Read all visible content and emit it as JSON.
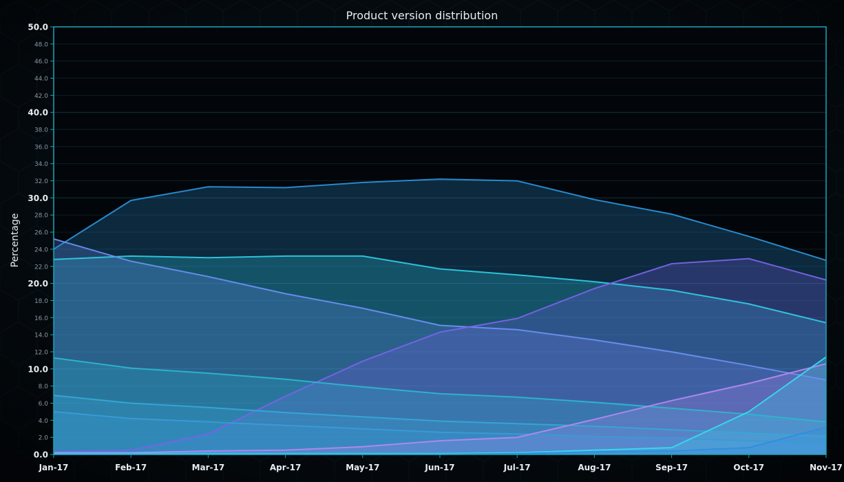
{
  "chart_data": {
    "type": "area",
    "title": "Product version distribution",
    "ylabel": "Percentage",
    "xlabel": "",
    "ylim": [
      0,
      50
    ],
    "grid": true,
    "x": [
      "Jan-17",
      "Feb-17",
      "Mar-17",
      "Apr-17",
      "May-17",
      "Jun-17",
      "Jul-17",
      "Aug-17",
      "Sep-17",
      "Oct-17",
      "Nov-17"
    ],
    "y_ticks": [
      "0.0",
      "2.0",
      "4.0",
      "6.0",
      "8.0",
      "10.0",
      "12.0",
      "14.0",
      "16.0",
      "18.0",
      "20.0",
      "22.0",
      "24.0",
      "26.0",
      "28.0",
      "30.0",
      "32.0",
      "34.0",
      "36.0",
      "38.0",
      "40.0",
      "42.0",
      "44.0",
      "46.0",
      "48.0",
      "50.0"
    ],
    "series": [
      {
        "values": [
          24.0,
          29.7,
          31.3,
          31.2,
          31.8,
          32.2,
          32.0,
          29.8,
          28.1,
          25.5,
          22.7
        ],
        "color": "#2a8fd6"
      },
      {
        "values": [
          22.8,
          23.2,
          23.0,
          23.2,
          23.2,
          21.7,
          21.0,
          20.2,
          19.2,
          17.6,
          15.4
        ],
        "color": "#2fc9e0"
      },
      {
        "values": [
          25.2,
          22.6,
          20.8,
          18.8,
          17.1,
          15.1,
          14.6,
          13.4,
          12.0,
          10.4,
          8.7
        ],
        "color": "#6a8ff0"
      },
      {
        "values": [
          0.3,
          0.5,
          2.4,
          6.8,
          10.9,
          14.3,
          15.9,
          19.4,
          22.3,
          22.9,
          20.4
        ],
        "color": "#7a62e8"
      },
      {
        "values": [
          11.3,
          10.1,
          9.5,
          8.8,
          7.9,
          7.1,
          6.7,
          6.1,
          5.4,
          4.7,
          3.8
        ],
        "color": "#2bb6cf"
      },
      {
        "values": [
          6.9,
          6.0,
          5.5,
          4.9,
          4.4,
          3.9,
          3.6,
          3.3,
          2.9,
          2.5,
          2.1
        ],
        "color": "#36a7d6"
      },
      {
        "values": [
          5.0,
          4.2,
          3.8,
          3.4,
          3.0,
          2.6,
          2.4,
          2.1,
          1.9,
          1.6,
          1.3
        ],
        "color": "#3a9ad8"
      },
      {
        "values": [
          0.2,
          0.2,
          0.4,
          0.5,
          0.9,
          1.6,
          2.0,
          4.1,
          6.3,
          8.3,
          10.6
        ],
        "color": "#b388f0"
      },
      {
        "values": [
          0.1,
          0.1,
          0.1,
          0.1,
          0.1,
          0.1,
          0.2,
          0.5,
          0.8,
          5.0,
          11.4
        ],
        "color": "#38d9ee"
      },
      {
        "values": [
          0.0,
          0.0,
          0.0,
          0.0,
          0.0,
          0.0,
          0.1,
          0.3,
          0.4,
          0.8,
          3.2
        ],
        "color": "#2f8de0"
      }
    ]
  }
}
